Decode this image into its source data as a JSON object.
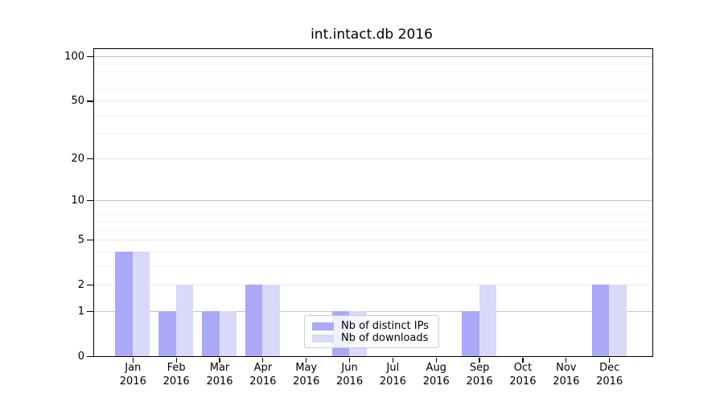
{
  "chart_data": {
    "type": "bar",
    "title": "int.intact.db 2016",
    "categories": [
      "Jan 2016",
      "Feb 2016",
      "Mar 2016",
      "Apr 2016",
      "May 2016",
      "Jun 2016",
      "Jul 2016",
      "Aug 2016",
      "Sep 2016",
      "Oct 2016",
      "Nov 2016",
      "Dec 2016"
    ],
    "series": [
      {
        "name": "Nb of distinct IPs",
        "color": "#a9a9f7",
        "values": [
          4,
          1,
          1,
          2,
          0,
          1,
          0,
          0,
          1,
          0,
          0,
          2
        ]
      },
      {
        "name": "Nb of downloads",
        "color": "#d9d9fa",
        "values": [
          4,
          2,
          1,
          2,
          0,
          1,
          0,
          0,
          2,
          0,
          0,
          2
        ]
      }
    ],
    "xlabel": "",
    "ylabel": "",
    "yscale": "log1p",
    "ylim": [
      0,
      113
    ],
    "y_ticks": [
      0,
      1,
      2,
      5,
      10,
      20,
      50,
      100
    ],
    "y_emphasized_gridlines": [
      1,
      10,
      100
    ],
    "y_minor_gridlines": [
      3,
      4,
      6,
      7,
      8,
      9,
      30,
      40,
      60,
      70,
      80,
      90
    ],
    "grid": "horizontal",
    "legend_position": "inside-bottom-center",
    "colors": {
      "grid_emphasis": "#c6c6c6",
      "grid_major": "#e7e7e7",
      "grid_minor": "#f2f2f2",
      "spine": "#000000",
      "text": "#000000",
      "legend_border": "#cccccc",
      "background": "#ffffff"
    }
  }
}
